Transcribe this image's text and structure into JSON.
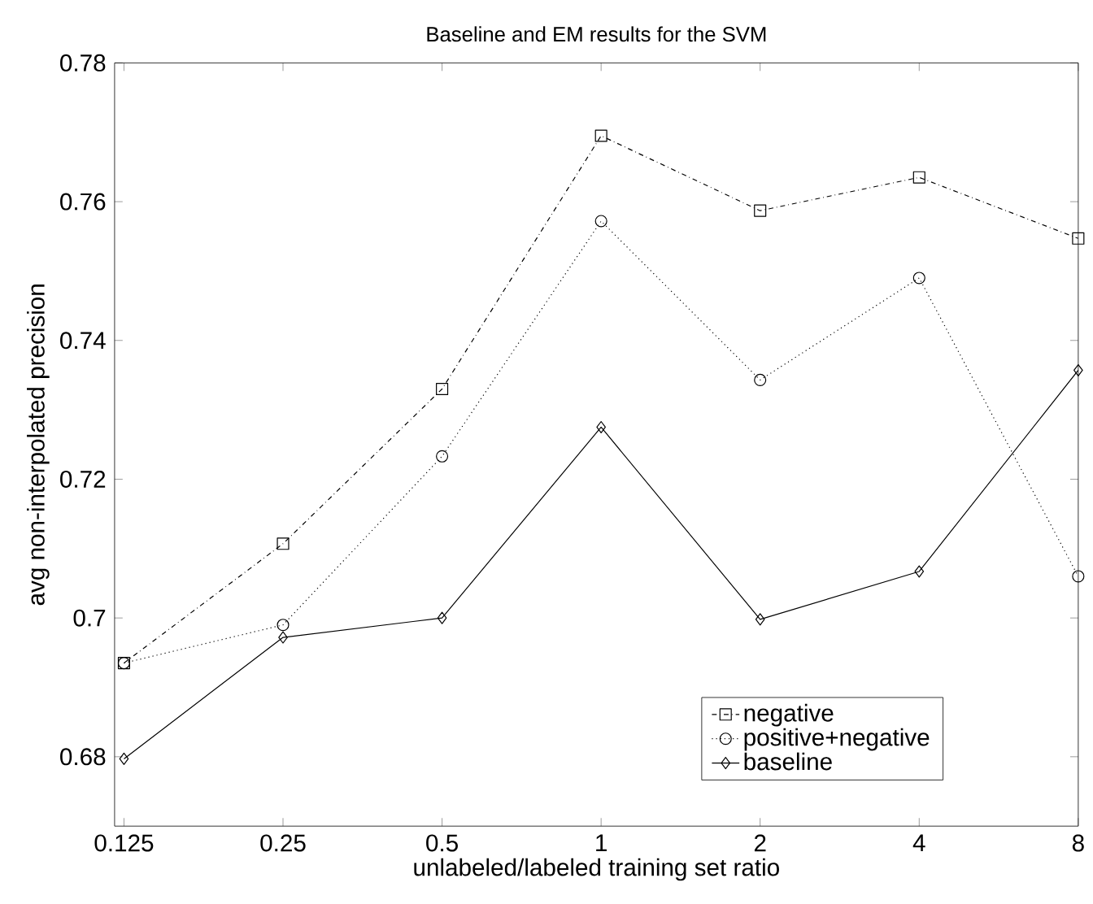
{
  "chart_data": {
    "type": "line",
    "title": "Baseline and EM results for the SVM",
    "xlabel": "unlabeled/labeled training set ratio",
    "ylabel": "avg non-interpolated precision",
    "x": [
      0.125,
      0.25,
      0.5,
      1,
      2,
      4,
      8
    ],
    "log": "x",
    "xlim": [
      0.12,
      8
    ],
    "xticks": [
      0.125,
      0.25,
      0.5,
      1,
      2,
      4,
      8
    ],
    "ylim": [
      0.67,
      0.78
    ],
    "yticks": [
      0.68,
      0.7,
      0.72,
      0.74,
      0.76,
      0.78
    ],
    "grid": false,
    "legend": "bottom right",
    "series": [
      {
        "name": "negative",
        "color": "#000000",
        "marker": "square",
        "line_style": "dashed",
        "values": [
          0.6935,
          0.7107,
          0.733,
          0.7695,
          0.7587,
          0.7635,
          0.7547
        ]
      },
      {
        "name": "positive+negative",
        "color": "#000000",
        "marker": "circle",
        "line_style": "dotted",
        "values": [
          0.6935,
          0.699,
          0.7233,
          0.7572,
          0.7343,
          0.749,
          0.706
        ]
      },
      {
        "name": "baseline",
        "color": "#000000",
        "marker": "diamond",
        "line_style": "solid",
        "values": [
          0.6797,
          0.6972,
          0.7,
          0.7275,
          0.6998,
          0.7067,
          0.7357
        ]
      }
    ]
  }
}
